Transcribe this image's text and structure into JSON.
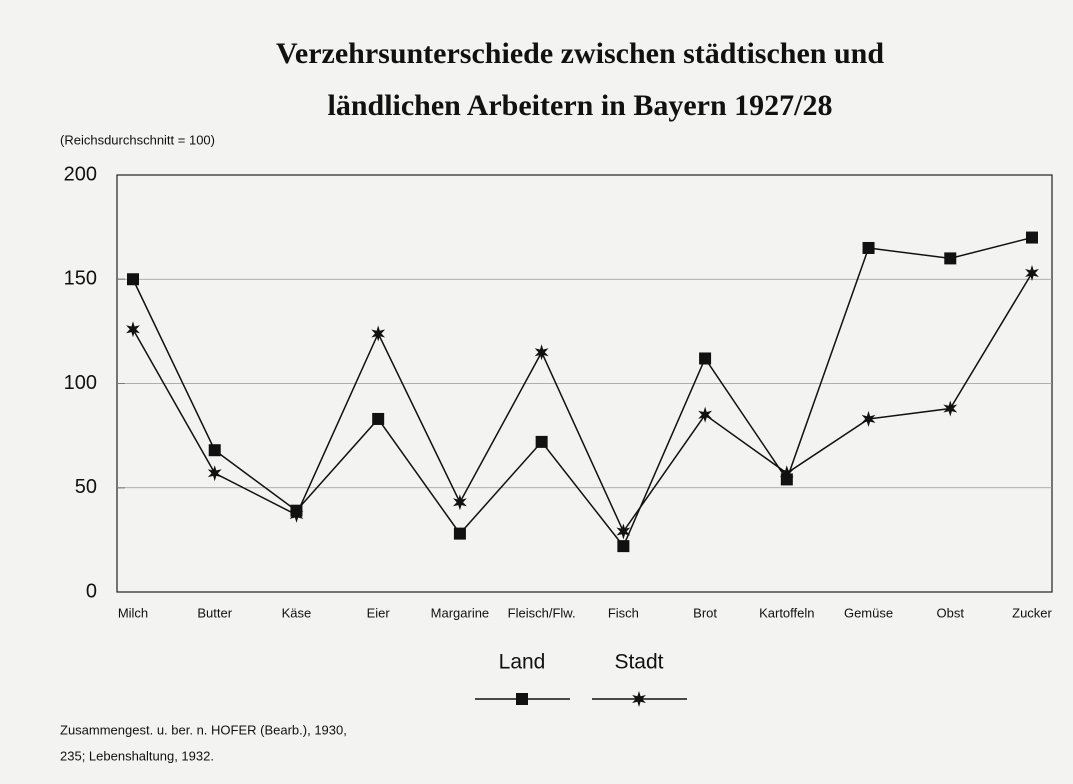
{
  "chart_data": {
    "type": "line",
    "title": [
      "Verzehrsunterschiede zwischen städtischen und",
      "ländlichen Arbeitern in Bayern 1927/28"
    ],
    "subtitle": "(Reichsdurchschnitt = 100)",
    "categories": [
      "Milch",
      "Butter",
      "Käse",
      "Eier",
      "Margarine",
      "Fleisch/Flw.",
      "Fisch",
      "Brot",
      "Kartoffeln",
      "Gemüse",
      "Obst",
      "Zucker"
    ],
    "series": [
      {
        "name": "Land",
        "color": "#111111",
        "marker": "square",
        "values": [
          150,
          68,
          39,
          83,
          28,
          72,
          22,
          112,
          54,
          165,
          160,
          170
        ]
      },
      {
        "name": "Stadt",
        "color": "#111111",
        "marker": "star",
        "values": [
          126,
          57,
          37,
          124,
          43,
          115,
          29,
          85,
          57,
          83,
          88,
          153
        ]
      }
    ],
    "ylim": [
      0,
      200
    ],
    "yticks": [
      0,
      50,
      100,
      150,
      200
    ],
    "grid": true,
    "legend": "bottom",
    "source": [
      "Zusammengest. u. ber. n. HOFER (Bearb.), 1930,",
      "235; Lebenshaltung, 1932."
    ]
  }
}
